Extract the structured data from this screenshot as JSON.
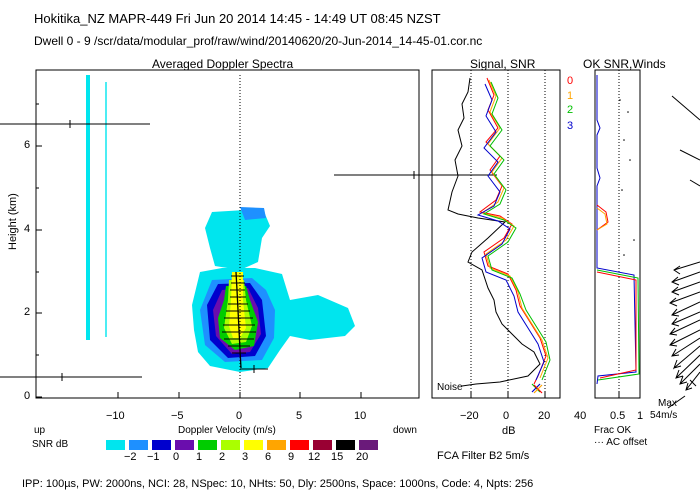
{
  "header": {
    "line1": "Hokitika_NZ  MAPR-449  Fri Jun 20 2014 14:45 - 14:49 UT 08:45 NZST",
    "line2": "Dwell  0 - 9   /scr/data/modular_prof/raw/wind/20140620/20-Jun-2014_14-45-01.cor.nc"
  },
  "panel_titles": {
    "spectra": "Averaged Doppler Spectra",
    "signal": "Signal, SNR",
    "ok": "OK SNR,Winds"
  },
  "channels": [
    {
      "label": "0",
      "color": "#ff0000"
    },
    {
      "label": "1",
      "color": "#ffa500"
    },
    {
      "label": "2",
      "color": "#00c000"
    },
    {
      "label": "3",
      "color": "#0000cc"
    }
  ],
  "axes": {
    "y_label": "Height (km)",
    "y_ticks": [
      "0",
      "2",
      "4",
      "6"
    ],
    "x_label": "Doppler Velocity (m/s)",
    "x_ticks": [
      "−10",
      "−5",
      "0",
      "5",
      "10"
    ],
    "db_ticks": [
      "−20",
      "0",
      "20",
      "40"
    ],
    "db_label": "dB",
    "frac_ticks": [
      "0.5",
      "1"
    ],
    "frac_label": "Frac OK",
    "ac_offset": "··· AC offset",
    "up": "up",
    "down": "down",
    "max_label": "Max",
    "max_value": "54m/s",
    "noise": "Noise"
  },
  "colorbar": {
    "label": "SNR dB",
    "levels": [
      "−2",
      "−1",
      "0",
      "1",
      "2",
      "3",
      "6",
      "9",
      "12",
      "15",
      "20"
    ],
    "colors": [
      "#00e5ee",
      "#1e90ff",
      "#0000cd",
      "#6a0dad",
      "#00cc00",
      "#aaff00",
      "#ffff00",
      "#ffa500",
      "#ff0000",
      "#990033",
      "#000000",
      "#6a1a7a"
    ]
  },
  "fca": "FCA Filter B2   5m/s",
  "footer": "IPP: 100µs,  PW: 2000ns,  NCI:  28,  NSpec: 10,  NHts: 50,  Dly: 2500ns,  Space: 1000ns,  Code: 4,  Npts: 256"
}
